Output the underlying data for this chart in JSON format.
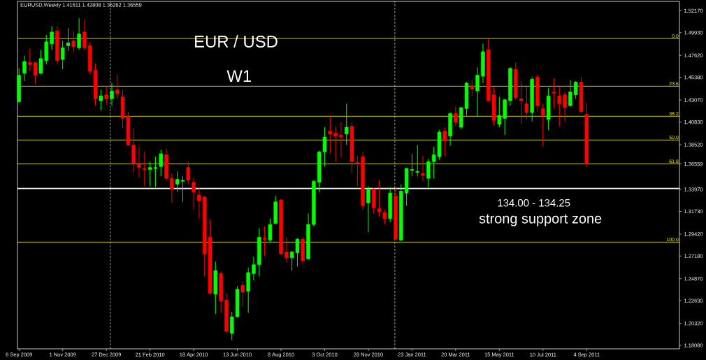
{
  "chart_data": {
    "type": "candlestick",
    "title": "EUR / USD",
    "subtitle": "W1",
    "annotations": [
      "EURUSD,Weekly  1.41611 1.42808 1.36262 1.36559",
      "134.00 - 134.25",
      "strong support zone",
      {
        "text": "0.0",
        "x": "2012-01-01",
        "y": 1.4934
      },
      {
        "text": "23.6",
        "x": "2012-01-01",
        "y": 1.4448
      },
      {
        "text": "38.2",
        "x": "2012-01-01",
        "y": 1.4142
      },
      {
        "text": "50.0",
        "x": "2012-01-01",
        "y": 1.39
      },
      {
        "text": "61.8",
        "x": "2012-01-01",
        "y": 1.3658
      },
      {
        "text": "100.0",
        "x": "2012-01-01",
        "y": 1.286
      }
    ],
    "x": [
      "2009-09-06",
      "2009-09-13",
      "2009-09-20",
      "2009-09-27",
      "2009-10-04",
      "2009-10-11",
      "2009-10-18",
      "2009-10-25",
      "2009-11-01",
      "2009-11-08",
      "2009-11-15",
      "2009-11-22",
      "2009-11-29",
      "2009-12-06",
      "2009-12-13",
      "2009-12-20",
      "2009-12-27",
      "2010-01-03",
      "2010-01-10",
      "2010-01-17",
      "2010-01-24",
      "2010-01-31",
      "2010-02-07",
      "2010-02-14",
      "2010-02-21",
      "2010-02-28",
      "2010-03-07",
      "2010-03-14",
      "2010-03-21",
      "2010-03-28",
      "2010-04-04",
      "2010-04-11",
      "2010-04-18",
      "2010-04-25",
      "2010-05-02",
      "2010-05-09",
      "2010-05-16",
      "2010-05-23",
      "2010-05-30",
      "2010-06-06",
      "2010-06-13",
      "2010-06-20",
      "2010-06-27",
      "2010-07-04",
      "2010-07-11",
      "2010-07-18",
      "2010-07-25",
      "2010-08-01",
      "2010-08-08",
      "2010-08-15",
      "2010-08-22",
      "2010-08-29",
      "2010-09-05",
      "2010-09-12",
      "2010-09-19",
      "2010-09-26",
      "2010-10-03",
      "2010-10-10",
      "2010-10-17",
      "2010-10-24",
      "2010-10-31",
      "2010-11-07",
      "2010-11-14",
      "2010-11-21",
      "2010-11-28",
      "2010-12-05",
      "2010-12-12",
      "2010-12-19",
      "2010-12-26",
      "2011-01-02",
      "2011-01-09",
      "2011-01-16",
      "2011-01-23",
      "2011-01-30",
      "2011-02-06",
      "2011-02-13",
      "2011-02-20",
      "2011-02-27",
      "2011-03-06",
      "2011-03-13",
      "2011-03-20",
      "2011-03-27",
      "2011-04-03",
      "2011-04-10",
      "2011-04-17",
      "2011-04-24",
      "2011-05-01",
      "2011-05-08",
      "2011-05-15",
      "2011-05-22",
      "2011-05-29",
      "2011-06-05",
      "2011-06-12",
      "2011-06-19",
      "2011-06-26",
      "2011-07-03",
      "2011-07-10",
      "2011-07-17",
      "2011-07-24",
      "2011-07-31",
      "2011-08-07",
      "2011-08-14",
      "2011-08-21",
      "2011-08-28",
      "2011-09-04"
    ],
    "ohlc": [
      [
        1.429,
        1.463,
        1.428,
        1.456
      ],
      [
        1.458,
        1.476,
        1.45,
        1.47
      ],
      [
        1.469,
        1.483,
        1.46,
        1.467
      ],
      [
        1.469,
        1.47,
        1.447,
        1.456
      ],
      [
        1.458,
        1.482,
        1.457,
        1.473
      ],
      [
        1.471,
        1.497,
        1.467,
        1.49
      ],
      [
        1.488,
        1.506,
        1.482,
        1.5
      ],
      [
        1.501,
        1.506,
        1.467,
        1.471
      ],
      [
        1.472,
        1.491,
        1.462,
        1.484
      ],
      [
        1.486,
        1.504,
        1.481,
        1.489
      ],
      [
        1.491,
        1.501,
        1.479,
        1.485
      ],
      [
        1.484,
        1.514,
        1.482,
        1.498
      ],
      [
        1.5,
        1.513,
        1.482,
        1.484
      ],
      [
        1.486,
        1.49,
        1.457,
        1.46
      ],
      [
        1.461,
        1.468,
        1.425,
        1.432
      ],
      [
        1.43,
        1.441,
        1.42,
        1.435
      ],
      [
        1.436,
        1.445,
        1.426,
        1.432
      ],
      [
        1.432,
        1.448,
        1.425,
        1.44
      ],
      [
        1.441,
        1.457,
        1.432,
        1.437
      ],
      [
        1.434,
        1.441,
        1.402,
        1.412
      ],
      [
        1.414,
        1.419,
        1.384,
        1.385
      ],
      [
        1.385,
        1.402,
        1.357,
        1.366
      ],
      [
        1.365,
        1.383,
        1.352,
        1.362
      ],
      [
        1.361,
        1.378,
        1.343,
        1.36
      ],
      [
        1.36,
        1.368,
        1.343,
        1.362
      ],
      [
        1.361,
        1.373,
        1.342,
        1.362
      ],
      [
        1.363,
        1.38,
        1.353,
        1.376
      ],
      [
        1.375,
        1.381,
        1.349,
        1.351
      ],
      [
        1.351,
        1.356,
        1.326,
        1.34
      ],
      [
        1.345,
        1.358,
        1.337,
        1.35
      ],
      [
        1.348,
        1.353,
        1.327,
        1.349
      ],
      [
        1.362,
        1.368,
        1.345,
        1.349
      ],
      [
        1.347,
        1.352,
        1.319,
        1.337
      ],
      [
        1.334,
        1.341,
        1.31,
        1.328
      ],
      [
        1.332,
        1.333,
        1.251,
        1.274
      ],
      [
        1.291,
        1.309,
        1.233,
        1.234
      ],
      [
        1.233,
        1.266,
        1.213,
        1.257
      ],
      [
        1.254,
        1.256,
        1.214,
        1.226
      ],
      [
        1.227,
        1.234,
        1.194,
        1.195
      ],
      [
        1.193,
        1.215,
        1.186,
        1.21
      ],
      [
        1.21,
        1.241,
        1.209,
        1.238
      ],
      [
        1.242,
        1.246,
        1.22,
        1.235
      ],
      [
        1.236,
        1.26,
        1.214,
        1.255
      ],
      [
        1.254,
        1.271,
        1.247,
        1.263
      ],
      [
        1.263,
        1.3,
        1.251,
        1.291
      ],
      [
        1.29,
        1.302,
        1.272,
        1.289
      ],
      [
        1.288,
        1.31,
        1.286,
        1.304
      ],
      [
        1.305,
        1.333,
        1.304,
        1.327
      ],
      [
        1.329,
        1.33,
        1.273,
        1.274
      ],
      [
        1.276,
        1.291,
        1.265,
        1.27
      ],
      [
        1.27,
        1.277,
        1.257,
        1.276
      ],
      [
        1.275,
        1.29,
        1.261,
        1.289
      ],
      [
        1.289,
        1.291,
        1.263,
        1.267
      ],
      [
        1.269,
        1.315,
        1.268,
        1.304
      ],
      [
        1.304,
        1.349,
        1.302,
        1.348
      ],
      [
        1.347,
        1.379,
        1.337,
        1.378
      ],
      [
        1.378,
        1.403,
        1.363,
        1.393
      ],
      [
        1.399,
        1.415,
        1.376,
        1.396
      ],
      [
        1.397,
        1.404,
        1.368,
        1.394
      ],
      [
        1.395,
        1.408,
        1.372,
        1.393
      ],
      [
        1.396,
        1.427,
        1.385,
        1.403
      ],
      [
        1.404,
        1.408,
        1.356,
        1.368
      ],
      [
        1.367,
        1.374,
        1.343,
        1.366
      ],
      [
        1.373,
        1.378,
        1.319,
        1.323
      ],
      [
        1.326,
        1.343,
        1.296,
        1.34
      ],
      [
        1.34,
        1.341,
        1.315,
        1.321
      ],
      [
        1.32,
        1.349,
        1.312,
        1.317
      ],
      [
        1.316,
        1.319,
        1.304,
        1.31
      ],
      [
        1.31,
        1.342,
        1.306,
        1.336
      ],
      [
        1.333,
        1.342,
        1.288,
        1.289
      ],
      [
        1.288,
        1.345,
        1.287,
        1.338
      ],
      [
        1.336,
        1.362,
        1.323,
        1.361
      ],
      [
        1.359,
        1.376,
        1.353,
        1.36
      ],
      [
        1.357,
        1.385,
        1.353,
        1.358
      ],
      [
        1.356,
        1.374,
        1.348,
        1.354
      ],
      [
        1.351,
        1.371,
        1.341,
        1.368
      ],
      [
        1.368,
        1.383,
        1.351,
        1.375
      ],
      [
        1.373,
        1.4,
        1.37,
        1.398
      ],
      [
        1.399,
        1.403,
        1.374,
        1.389
      ],
      [
        1.394,
        1.418,
        1.384,
        1.417
      ],
      [
        1.417,
        1.424,
        1.404,
        1.408
      ],
      [
        1.403,
        1.424,
        1.401,
        1.423
      ],
      [
        1.422,
        1.449,
        1.415,
        1.448
      ],
      [
        1.445,
        1.451,
        1.435,
        1.442
      ],
      [
        1.44,
        1.464,
        1.414,
        1.456
      ],
      [
        1.455,
        1.488,
        1.448,
        1.48
      ],
      [
        1.482,
        1.493,
        1.429,
        1.43
      ],
      [
        1.436,
        1.444,
        1.405,
        1.41
      ],
      [
        1.406,
        1.434,
        1.403,
        1.415
      ],
      [
        1.412,
        1.432,
        1.395,
        1.431
      ],
      [
        1.43,
        1.464,
        1.425,
        1.463
      ],
      [
        1.462,
        1.469,
        1.431,
        1.433
      ],
      [
        1.432,
        1.45,
        1.406,
        1.43
      ],
      [
        1.427,
        1.444,
        1.411,
        1.418
      ],
      [
        1.418,
        1.454,
        1.409,
        1.452
      ],
      [
        1.454,
        1.457,
        1.419,
        1.425
      ],
      [
        1.422,
        1.427,
        1.383,
        1.415
      ],
      [
        1.411,
        1.443,
        1.4,
        1.435
      ],
      [
        1.439,
        1.453,
        1.422,
        1.438
      ],
      [
        1.435,
        1.444,
        1.404,
        1.427
      ],
      [
        1.436,
        1.439,
        1.409,
        1.423
      ],
      [
        1.425,
        1.451,
        1.424,
        1.439
      ],
      [
        1.436,
        1.45,
        1.432,
        1.449
      ],
      [
        1.449,
        1.454,
        1.417,
        1.419
      ],
      [
        1.41611,
        1.42808,
        1.36262,
        1.36559
      ]
    ],
    "colors": [
      "#00ff00",
      "#00ff00",
      "#ff0000",
      "#ff0000",
      "#00ff00",
      "#00ff00",
      "#00ff00",
      "#ff0000",
      "#00ff00",
      "#00ff00",
      "#ff0000",
      "#00ff00",
      "#ff0000",
      "#ff0000",
      "#ff0000",
      "#00ff00",
      "#ff0000",
      "#00ff00",
      "#ff0000",
      "#ff0000",
      "#ff0000",
      "#ff0000",
      "#ff0000",
      "#ff0000",
      "#00ff00",
      "#00ff00",
      "#00ff00",
      "#ff0000",
      "#ff0000",
      "#00ff00",
      "#00ff00",
      "#ff0000",
      "#ff0000",
      "#ff0000",
      "#ff0000",
      "#ff0000",
      "#00ff00",
      "#ff0000",
      "#ff0000",
      "#00ff00",
      "#00ff00",
      "#ff0000",
      "#00ff00",
      "#00ff00",
      "#00ff00",
      "#ff0000",
      "#00ff00",
      "#00ff00",
      "#ff0000",
      "#ff0000",
      "#00ff00",
      "#00ff00",
      "#ff0000",
      "#00ff00",
      "#00ff00",
      "#00ff00",
      "#00ff00",
      "#ff0000",
      "#ff0000",
      "#ff0000",
      "#00ff00",
      "#ff0000",
      "#ff0000",
      "#ff0000",
      "#00ff00",
      "#ff0000",
      "#ff0000",
      "#ff0000",
      "#00ff00",
      "#ff0000",
      "#00ff00",
      "#00ff00",
      "#00ff00",
      "#00ff00",
      "#ff0000",
      "#00ff00",
      "#00ff00",
      "#00ff00",
      "#ff0000",
      "#00ff00",
      "#ff0000",
      "#00ff00",
      "#00ff00",
      "#ff0000",
      "#00ff00",
      "#00ff00",
      "#ff0000",
      "#ff0000",
      "#00ff00",
      "#00ff00",
      "#00ff00",
      "#ff0000",
      "#ff0000",
      "#ff0000",
      "#00ff00",
      "#ff0000",
      "#ff0000",
      "#00ff00",
      "#ff0000",
      "#ff0000",
      "#ff0000",
      "#00ff00",
      "#00ff00",
      "#ff0000",
      "#ff0000"
    ],
    "xlim": [
      "2009-09-04",
      "2012-01-01"
    ],
    "xticks": [
      {
        "value": "2009-09-06",
        "label": "6 Sep 2009"
      },
      {
        "value": "2009-11-01",
        "label": "1 Nov 2009"
      },
      {
        "value": "2009-12-27",
        "label": "27 Dec 2009"
      },
      {
        "value": "2010-02-21",
        "label": "21 Feb 2010"
      },
      {
        "value": "2010-04-18",
        "label": "18 Apr 2010"
      },
      {
        "value": "2010-06-13",
        "label": "13 Jun 2010"
      },
      {
        "value": "2010-08-08",
        "label": "8 Aug 2010"
      },
      {
        "value": "2010-10-03",
        "label": "3 Oct 2010"
      },
      {
        "value": "2010-11-28",
        "label": "28 Nov 2010"
      },
      {
        "value": "2011-01-23",
        "label": "23 Jan 2011"
      },
      {
        "value": "2011-03-20",
        "label": "20 Mar 2011"
      },
      {
        "value": "2011-05-15",
        "label": "15 May 2011"
      },
      {
        "value": "2011-07-10",
        "label": "10 Jul 2011"
      },
      {
        "value": "2011-09-04",
        "label": "4 Sep 2011"
      }
    ],
    "ylim": [
      1.1773,
      1.5312
    ],
    "yticks": [
      {
        "value": 1.5217,
        "label": "1.52170"
      },
      {
        "value": 1.4993,
        "label": "1.49930"
      },
      {
        "value": 1.4762,
        "label": "1.47620"
      },
      {
        "value": 1.4538,
        "label": "1.45380"
      },
      {
        "value": 1.4307,
        "label": "1.43070"
      },
      {
        "value": 1.4083,
        "label": "1.40830"
      },
      {
        "value": 1.3852,
        "label": "1.38520"
      },
      {
        "value": 1.36559,
        "label": "1.36559"
      },
      {
        "value": 1.3397,
        "label": "1.33970"
      },
      {
        "value": 1.3173,
        "label": "1.31730"
      },
      {
        "value": 1.2942,
        "label": "1.29420"
      },
      {
        "value": 1.2718,
        "label": "1.27180"
      },
      {
        "value": 1.2487,
        "label": "1.24870"
      },
      {
        "value": 1.2263,
        "label": "1.22630"
      },
      {
        "value": 1.2032,
        "label": "1.20320"
      },
      {
        "value": 1.1808,
        "label": "1.18080"
      }
    ],
    "ref_lines": [
      {
        "axis": "x",
        "value": "2010-01-01",
        "color": "#ffffff",
        "line_style": "dashed"
      },
      {
        "axis": "x",
        "value": "2011-01-01",
        "color": "#ffffff",
        "line_style": "dashed"
      },
      {
        "axis": "y",
        "value": 1.4934,
        "color": "#ffff00"
      },
      {
        "axis": "y",
        "value": 1.4448,
        "color": "#ffff00"
      },
      {
        "axis": "y",
        "value": 1.4142,
        "color": "#ffff00"
      },
      {
        "axis": "y",
        "value": 1.39,
        "color": "#ffff00"
      },
      {
        "axis": "y",
        "value": 1.3658,
        "color": "#ffff00"
      },
      {
        "axis": "y",
        "value": 1.286,
        "color": "#ffff00"
      },
      {
        "axis": "y",
        "value": 1.3406,
        "color": "#ffffff",
        "line_style": "solid"
      }
    ]
  }
}
